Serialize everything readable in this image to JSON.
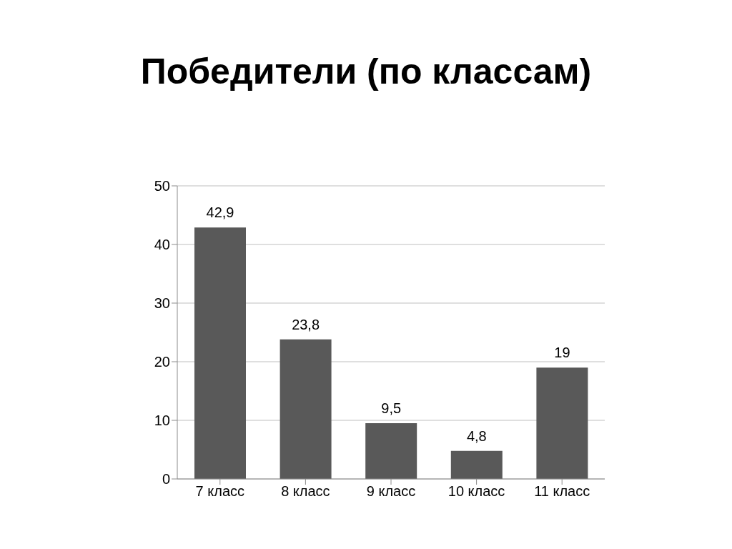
{
  "chart_data": {
    "type": "bar",
    "title": "Победители (по классам)",
    "categories": [
      "7 класс",
      "8 класс",
      "9 класс",
      "10 класс",
      "11 класс"
    ],
    "values": [
      42.9,
      23.8,
      9.5,
      4.8,
      19
    ],
    "value_labels": [
      "42,9",
      "23,8",
      "9,5",
      "4,8",
      "19"
    ],
    "color": "#595959",
    "ylim": [
      0,
      50
    ],
    "yticks": [
      0,
      10,
      20,
      30,
      40,
      50
    ],
    "grid": "y"
  }
}
